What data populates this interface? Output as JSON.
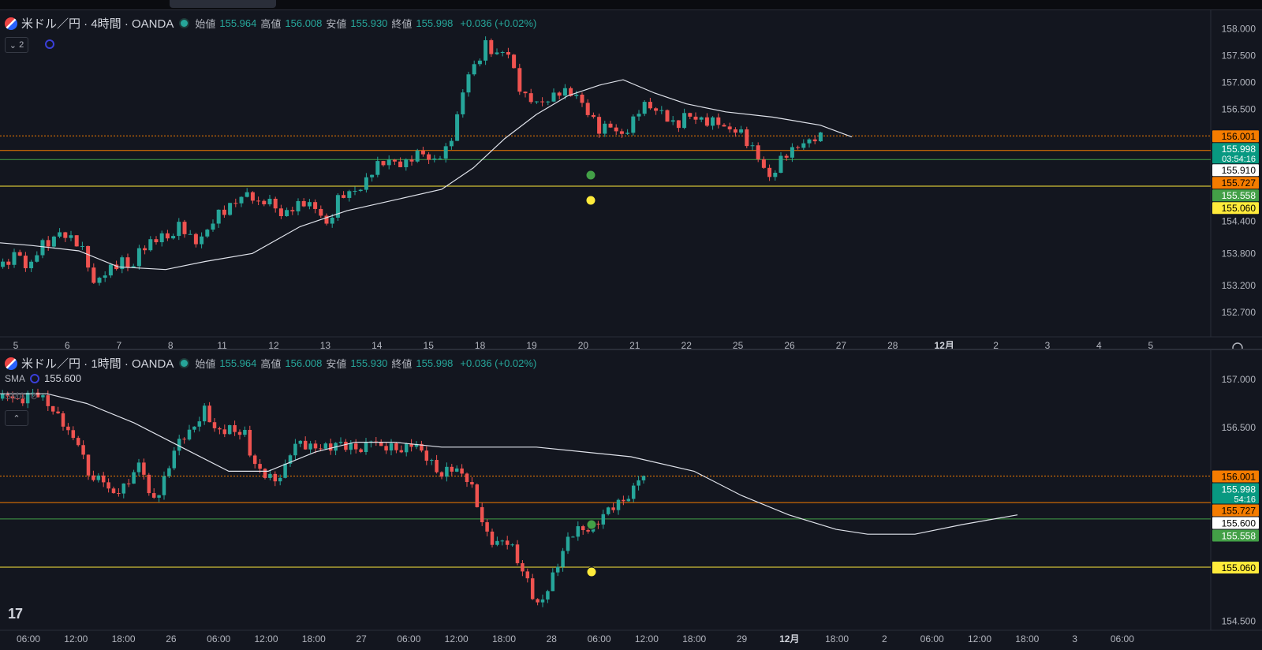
{
  "top": {
    "symbol": "米ドル／円 · 4時間 · OANDA",
    "o_label": "始値",
    "o": "155.964",
    "h_label": "高値",
    "h": "156.008",
    "l_label": "安値",
    "l": "155.930",
    "c_label": "終値",
    "c": "155.998",
    "change": "+0.036 (+0.02%)",
    "collapse_count": "2",
    "badges": [
      {
        "text": "156.001",
        "bg": "#f57c00",
        "fg": "#000000",
        "y": 156.001
      },
      {
        "text": "155.998",
        "bg": "#089981",
        "fg": "#ffffff",
        "y": 155.998,
        "sub": "03:54:16"
      },
      {
        "text": "155.910",
        "bg": "#ffffff",
        "fg": "#000000",
        "y": 155.91
      },
      {
        "text": "155.727",
        "bg": "#f57c00",
        "fg": "#000000",
        "y": 155.727
      },
      {
        "text": "155.558",
        "bg": "#43a047",
        "fg": "#ffffff",
        "y": 155.558
      },
      {
        "text": "155.060",
        "bg": "#ffeb3b",
        "fg": "#000000",
        "y": 155.06
      }
    ]
  },
  "bottom": {
    "symbol": "米ドル／円 · 1時間 · OANDA",
    "o_label": "始値",
    "o": "155.964",
    "h_label": "高値",
    "h": "156.008",
    "l_label": "安値",
    "l": "155.930",
    "c_label": "終値",
    "c": "155.998",
    "change": "+0.036 (+0.02%)",
    "sma_label": "SMA",
    "sma_value": "155.600",
    "sma2_label": "SMA",
    "badges": [
      {
        "text": "156.001",
        "bg": "#f57c00",
        "fg": "#000000",
        "y": 156.001
      },
      {
        "text": "155.998",
        "bg": "#089981",
        "fg": "#ffffff",
        "y": 155.998,
        "sub": "54:16"
      },
      {
        "text": "155.727",
        "bg": "#f57c00",
        "fg": "#000000",
        "y": 155.727
      },
      {
        "text": "155.600",
        "bg": "#ffffff",
        "fg": "#000000",
        "y": 155.6
      },
      {
        "text": "155.558",
        "bg": "#43a047",
        "fg": "#ffffff",
        "y": 155.558
      },
      {
        "text": "155.060",
        "bg": "#ffeb3b",
        "fg": "#000000",
        "y": 155.06
      }
    ]
  },
  "chart_data": [
    {
      "type": "candlestick",
      "title": "米ドル／円 · 4時間 · OANDA",
      "ylim": [
        152.3,
        158.35
      ],
      "yticks": [
        "158.000",
        "157.500",
        "157.000",
        "156.500",
        "156.001",
        "155.998",
        "155.910",
        "155.727",
        "155.558",
        "155.060",
        "154.400",
        "153.800",
        "153.200",
        "152.700"
      ],
      "ytick_values": [
        158.0,
        157.5,
        157.0,
        156.5,
        156.001,
        155.998,
        155.91,
        155.727,
        155.558,
        155.06,
        154.4,
        153.8,
        153.2,
        152.7
      ],
      "xticks": [
        "5",
        "6",
        "7",
        "8",
        "11",
        "12",
        "13",
        "14",
        "15",
        "18",
        "19",
        "20",
        "21",
        "22",
        "25",
        "26",
        "27",
        "28",
        "12月",
        "2",
        "3",
        "4",
        "5"
      ],
      "horizontal_lines": [
        {
          "y": 156.001,
          "color": "#f57c00",
          "style": "dotted"
        },
        {
          "y": 155.727,
          "color": "#f57c00",
          "style": "solid"
        },
        {
          "y": 155.558,
          "color": "#43a047",
          "style": "solid"
        },
        {
          "y": 155.06,
          "color": "#ffeb3b",
          "style": "solid"
        }
      ],
      "grid": false,
      "close_path": [
        [
          0,
          153.55
        ],
        [
          12,
          153.65
        ],
        [
          20,
          153.85
        ],
        [
          28,
          153.7
        ],
        [
          36,
          153.45
        ],
        [
          44,
          153.75
        ],
        [
          52,
          154.0
        ],
        [
          60,
          153.95
        ],
        [
          68,
          154.1
        ],
        [
          78,
          154.2
        ],
        [
          86,
          154.1
        ],
        [
          94,
          154.05
        ],
        [
          104,
          153.9
        ],
        [
          112,
          153.55
        ],
        [
          120,
          153.2
        ],
        [
          128,
          153.35
        ],
        [
          136,
          153.5
        ],
        [
          146,
          153.55
        ],
        [
          156,
          153.7
        ],
        [
          166,
          153.45
        ],
        [
          176,
          153.85
        ],
        [
          186,
          153.95
        ],
        [
          196,
          154.05
        ],
        [
          206,
          154.15
        ],
        [
          216,
          154.05
        ],
        [
          226,
          154.35
        ],
        [
          236,
          154.2
        ],
        [
          246,
          154.0
        ],
        [
          256,
          154.1
        ],
        [
          266,
          154.3
        ],
        [
          276,
          154.55
        ],
        [
          286,
          154.6
        ],
        [
          296,
          154.75
        ],
        [
          306,
          154.85
        ],
        [
          316,
          154.95
        ],
        [
          326,
          154.7
        ],
        [
          336,
          154.8
        ],
        [
          346,
          154.75
        ],
        [
          356,
          154.5
        ],
        [
          366,
          154.6
        ],
        [
          376,
          154.7
        ],
        [
          386,
          154.75
        ],
        [
          396,
          154.7
        ],
        [
          406,
          154.55
        ],
        [
          416,
          154.25
        ],
        [
          426,
          154.8
        ],
        [
          436,
          154.9
        ],
        [
          446,
          154.95
        ],
        [
          456,
          155.0
        ],
        [
          466,
          155.2
        ],
        [
          476,
          155.45
        ],
        [
          486,
          155.5
        ],
        [
          496,
          155.55
        ],
        [
          506,
          155.45
        ],
        [
          516,
          155.5
        ],
        [
          526,
          155.65
        ],
        [
          536,
          155.7
        ],
        [
          546,
          155.5
        ],
        [
          556,
          155.6
        ],
        [
          566,
          155.75
        ],
        [
          576,
          156.1
        ],
        [
          586,
          156.8
        ],
        [
          596,
          157.25
        ],
        [
          606,
          157.35
        ],
        [
          614,
          157.75
        ],
        [
          622,
          157.6
        ],
        [
          632,
          157.5
        ],
        [
          642,
          157.65
        ],
        [
          652,
          157.2
        ],
        [
          662,
          156.75
        ],
        [
          672,
          156.7
        ],
        [
          682,
          156.6
        ],
        [
          692,
          156.65
        ],
        [
          702,
          156.75
        ],
        [
          712,
          156.85
        ],
        [
          722,
          156.8
        ],
        [
          732,
          156.75
        ],
        [
          742,
          156.5
        ],
        [
          752,
          156.3
        ],
        [
          762,
          156.05
        ],
        [
          770,
          156.25
        ],
        [
          780,
          156.1
        ],
        [
          788,
          156.0
        ],
        [
          798,
          156.15
        ],
        [
          808,
          156.45
        ],
        [
          818,
          156.6
        ],
        [
          828,
          156.5
        ],
        [
          838,
          156.45
        ],
        [
          848,
          156.3
        ],
        [
          858,
          156.15
        ],
        [
          868,
          156.4
        ],
        [
          878,
          156.35
        ],
        [
          888,
          156.3
        ],
        [
          898,
          156.25
        ],
        [
          908,
          156.3
        ],
        [
          918,
          156.15
        ],
        [
          928,
          156.1
        ],
        [
          938,
          156.1
        ],
        [
          948,
          155.85
        ],
        [
          958,
          155.7
        ],
        [
          968,
          155.4
        ],
        [
          978,
          155.15
        ],
        [
          986,
          155.5
        ],
        [
          996,
          155.65
        ],
        [
          1006,
          155.75
        ],
        [
          1016,
          155.85
        ],
        [
          1026,
          155.9
        ],
        [
          1036,
          155.98
        ],
        [
          1042,
          156.0
        ]
      ],
      "sma_path": [
        [
          0,
          154.0
        ],
        [
          40,
          153.95
        ],
        [
          100,
          153.85
        ],
        [
          150,
          153.55
        ],
        [
          210,
          153.5
        ],
        [
          260,
          153.65
        ],
        [
          320,
          153.8
        ],
        [
          380,
          154.3
        ],
        [
          440,
          154.6
        ],
        [
          500,
          154.8
        ],
        [
          560,
          155.0
        ],
        [
          600,
          155.4
        ],
        [
          640,
          155.95
        ],
        [
          680,
          156.4
        ],
        [
          720,
          156.75
        ],
        [
          760,
          156.95
        ],
        [
          790,
          157.05
        ],
        [
          830,
          156.8
        ],
        [
          870,
          156.6
        ],
        [
          920,
          156.45
        ],
        [
          980,
          156.35
        ],
        [
          1040,
          156.2
        ],
        [
          1080,
          155.98
        ]
      ]
    },
    {
      "type": "candlestick",
      "title": "米ドル／円 · 1時間 · OANDA",
      "ylim": [
        154.4,
        157.3
      ],
      "yticks": [
        "157.000",
        "156.500",
        "156.001",
        "155.998",
        "155.727",
        "155.600",
        "155.558",
        "155.060",
        "154.500"
      ],
      "ytick_values": [
        157.0,
        156.5,
        156.001,
        155.998,
        155.727,
        155.6,
        155.558,
        155.06,
        154.5
      ],
      "xticks": [
        "06:00",
        "12:00",
        "18:00",
        "26",
        "06:00",
        "12:00",
        "18:00",
        "27",
        "06:00",
        "12:00",
        "18:00",
        "28",
        "06:00",
        "12:00",
        "18:00",
        "29",
        "12月",
        "18:00",
        "2",
        "06:00",
        "12:00",
        "18:00",
        "3",
        "06:00"
      ],
      "horizontal_lines": [
        {
          "y": 156.001,
          "color": "#f57c00",
          "style": "dotted"
        },
        {
          "y": 155.727,
          "color": "#f57c00",
          "style": "solid"
        },
        {
          "y": 155.558,
          "color": "#43a047",
          "style": "solid"
        },
        {
          "y": 155.06,
          "color": "#ffeb3b",
          "style": "solid"
        }
      ],
      "grid": false,
      "close_path": [
        [
          0,
          156.8
        ],
        [
          12,
          156.85
        ],
        [
          24,
          156.75
        ],
        [
          36,
          156.85
        ],
        [
          48,
          156.85
        ],
        [
          60,
          156.75
        ],
        [
          70,
          156.65
        ],
        [
          80,
          156.55
        ],
        [
          90,
          156.4
        ],
        [
          100,
          156.35
        ],
        [
          110,
          156.05
        ],
        [
          120,
          155.95
        ],
        [
          130,
          156.0
        ],
        [
          140,
          155.8
        ],
        [
          150,
          155.85
        ],
        [
          160,
          155.9
        ],
        [
          170,
          156.05
        ],
        [
          180,
          156.15
        ],
        [
          190,
          155.75
        ],
        [
          200,
          155.8
        ],
        [
          210,
          156.0
        ],
        [
          220,
          156.25
        ],
        [
          230,
          156.4
        ],
        [
          240,
          156.45
        ],
        [
          250,
          156.55
        ],
        [
          260,
          156.7
        ],
        [
          270,
          156.5
        ],
        [
          280,
          156.45
        ],
        [
          290,
          156.5
        ],
        [
          300,
          156.45
        ],
        [
          310,
          156.45
        ],
        [
          320,
          156.15
        ],
        [
          330,
          156.05
        ],
        [
          340,
          156.0
        ],
        [
          350,
          155.95
        ],
        [
          360,
          156.05
        ],
        [
          370,
          156.3
        ],
        [
          380,
          156.35
        ],
        [
          390,
          156.3
        ],
        [
          400,
          156.3
        ],
        [
          410,
          156.3
        ],
        [
          420,
          156.3
        ],
        [
          430,
          156.35
        ],
        [
          440,
          156.3
        ],
        [
          450,
          156.3
        ],
        [
          460,
          156.25
        ],
        [
          470,
          156.4
        ],
        [
          480,
          156.3
        ],
        [
          490,
          156.3
        ],
        [
          500,
          156.3
        ],
        [
          510,
          156.25
        ],
        [
          520,
          156.35
        ],
        [
          530,
          156.3
        ],
        [
          540,
          156.2
        ],
        [
          550,
          156.1
        ],
        [
          560,
          156.0
        ],
        [
          570,
          156.1
        ],
        [
          580,
          156.05
        ],
        [
          590,
          156.0
        ],
        [
          600,
          155.85
        ],
        [
          610,
          155.55
        ],
        [
          620,
          155.35
        ],
        [
          630,
          155.3
        ],
        [
          640,
          155.35
        ],
        [
          650,
          155.25
        ],
        [
          660,
          155.05
        ],
        [
          670,
          154.9
        ],
        [
          680,
          154.65
        ],
        [
          690,
          154.75
        ],
        [
          700,
          154.95
        ],
        [
          710,
          155.15
        ],
        [
          720,
          155.35
        ],
        [
          730,
          155.45
        ],
        [
          740,
          155.45
        ],
        [
          750,
          155.45
        ],
        [
          760,
          155.55
        ],
        [
          770,
          155.65
        ],
        [
          780,
          155.7
        ],
        [
          790,
          155.75
        ],
        [
          800,
          155.8
        ],
        [
          810,
          156.0
        ],
        [
          820,
          155.98
        ]
      ],
      "sma_path": [
        [
          0,
          156.85
        ],
        [
          60,
          156.85
        ],
        [
          110,
          156.75
        ],
        [
          170,
          156.55
        ],
        [
          230,
          156.3
        ],
        [
          290,
          156.05
        ],
        [
          340,
          156.05
        ],
        [
          400,
          156.25
        ],
        [
          450,
          156.35
        ],
        [
          500,
          156.35
        ],
        [
          560,
          156.3
        ],
        [
          620,
          156.3
        ],
        [
          680,
          156.3
        ],
        [
          740,
          156.25
        ],
        [
          800,
          156.2
        ],
        [
          880,
          156.05
        ],
        [
          940,
          155.8
        ],
        [
          1000,
          155.6
        ],
        [
          1060,
          155.45
        ],
        [
          1100,
          155.4
        ],
        [
          1160,
          155.4
        ],
        [
          1220,
          155.5
        ],
        [
          1290,
          155.6
        ]
      ]
    }
  ]
}
